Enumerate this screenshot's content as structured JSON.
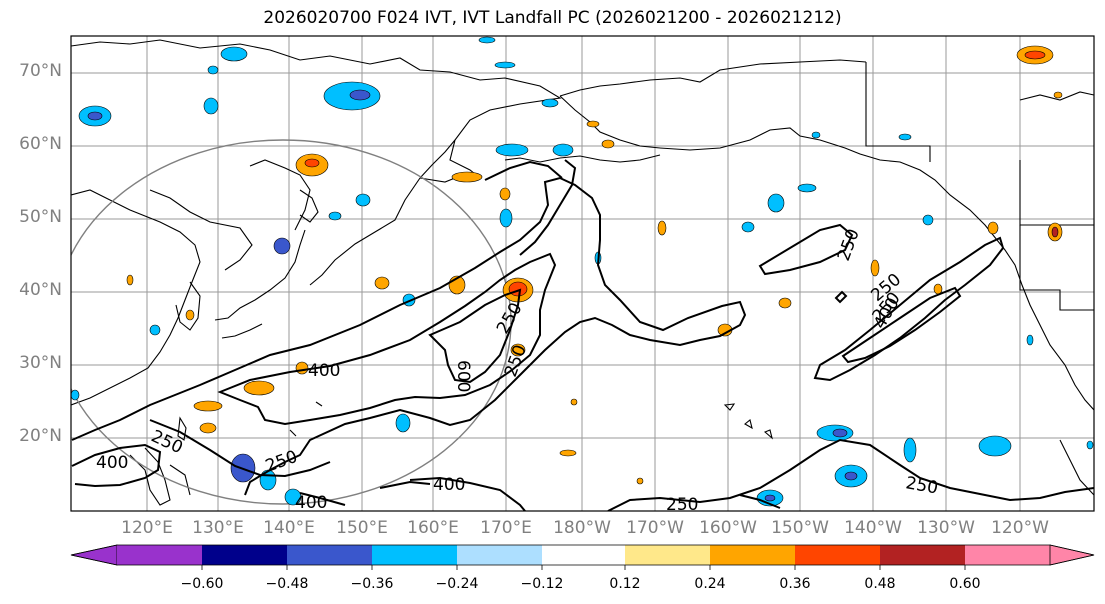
{
  "title": "2026020700 F024 IVT, IVT Landfall PC (2026021200 - 2026021212)",
  "lat_labels": [
    "70°N",
    "60°N",
    "50°N",
    "40°N",
    "30°N",
    "20°N"
  ],
  "lon_labels": [
    "120°E",
    "130°E",
    "140°E",
    "150°E",
    "160°E",
    "170°E",
    "180°W",
    "170°W",
    "160°W",
    "150°W",
    "140°W",
    "130°W",
    "120°W"
  ],
  "contour_labels": [
    "250",
    "400",
    "600",
    "400",
    "250",
    "250",
    "250",
    "400",
    "250",
    "250",
    "250",
    "400",
    "250",
    "250",
    "400"
  ],
  "colorbar": {
    "colors": [
      "#9932CC",
      "#00008B",
      "#3A57CC",
      "#00BFFF",
      "#ADDFFF",
      "#FFFFFF",
      "#FFE88A",
      "#FFA500",
      "#FF4500",
      "#B22222",
      "#FF85A8"
    ],
    "tick_labels": [
      "−0.60",
      "−0.48",
      "−0.36",
      "−0.24",
      "−0.12",
      "0.12",
      "0.24",
      "0.36",
      "0.48",
      "0.60"
    ]
  },
  "colors": {
    "land_outline": "#000000",
    "grid": "#9a9a9a",
    "circle": "#808080",
    "positive_blob": "#FFA500",
    "positive_core": "#FF4500",
    "negative_blob": "#00BFFF",
    "negative_core": "#3A57CC",
    "tick_label": "#808080"
  }
}
